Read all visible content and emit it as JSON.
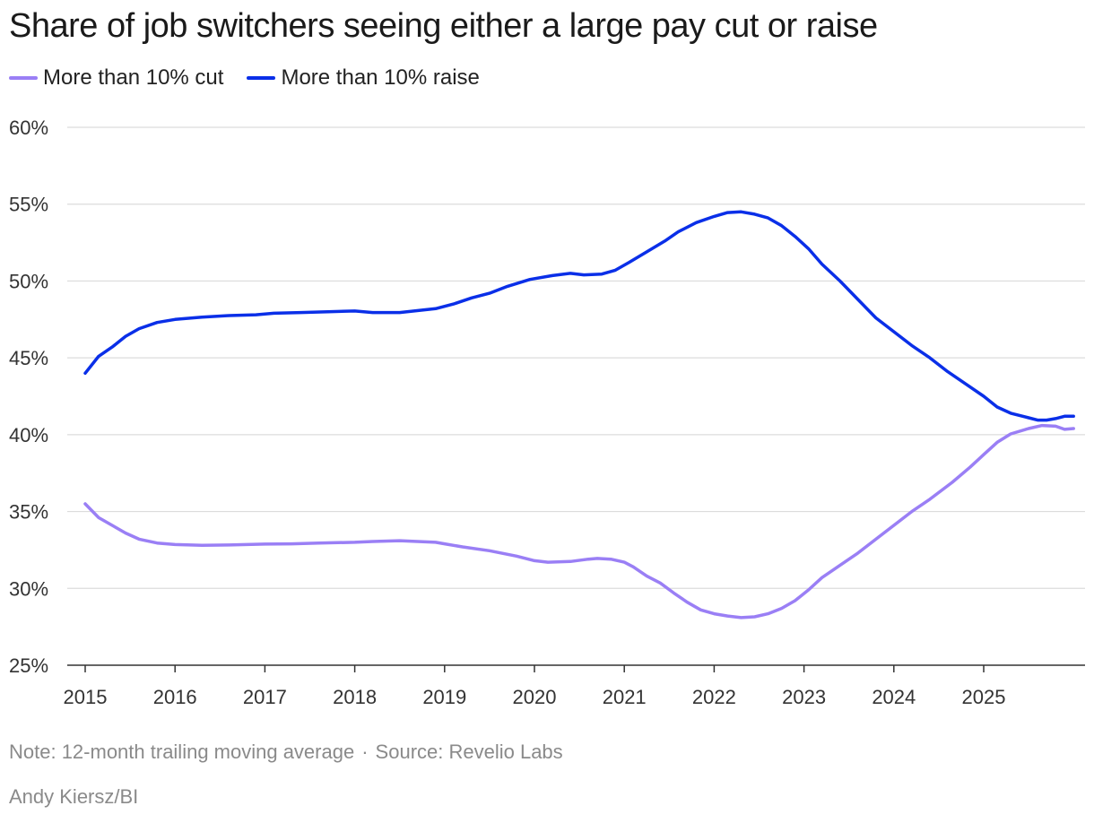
{
  "chart_data": {
    "type": "line",
    "title": "Share of job switchers seeing either a large pay cut or raise",
    "xlabel": "",
    "ylabel": "",
    "ylim": [
      25,
      60
    ],
    "xlim": [
      2015,
      2026.1
    ],
    "yticks": [
      25,
      30,
      35,
      40,
      45,
      50,
      55,
      60
    ],
    "ytick_labels": [
      "25%",
      "30%",
      "35%",
      "40%",
      "45%",
      "50%",
      "55%",
      "60%"
    ],
    "xticks": [
      2015,
      2016,
      2017,
      2018,
      2019,
      2020,
      2021,
      2022,
      2023,
      2024,
      2025
    ],
    "xtick_labels": [
      "2015",
      "2016",
      "2017",
      "2018",
      "2019",
      "2020",
      "2021",
      "2022",
      "2023",
      "2024",
      "2025"
    ],
    "grid": true,
    "legend_position": "top-left",
    "series": [
      {
        "name": "More than 10% cut",
        "color": "#9a7ff5",
        "points": [
          [
            2015.0,
            35.5
          ],
          [
            2015.15,
            34.6
          ],
          [
            2015.3,
            34.1
          ],
          [
            2015.45,
            33.6
          ],
          [
            2015.6,
            33.2
          ],
          [
            2015.8,
            32.95
          ],
          [
            2016.0,
            32.85
          ],
          [
            2016.3,
            32.8
          ],
          [
            2016.6,
            32.82
          ],
          [
            2017.0,
            32.88
          ],
          [
            2017.3,
            32.9
          ],
          [
            2017.6,
            32.95
          ],
          [
            2018.0,
            33.0
          ],
          [
            2018.2,
            33.05
          ],
          [
            2018.5,
            33.1
          ],
          [
            2018.9,
            33.0
          ],
          [
            2019.0,
            32.9
          ],
          [
            2019.2,
            32.7
          ],
          [
            2019.5,
            32.45
          ],
          [
            2019.8,
            32.1
          ],
          [
            2020.0,
            31.8
          ],
          [
            2020.15,
            31.7
          ],
          [
            2020.4,
            31.75
          ],
          [
            2020.6,
            31.9
          ],
          [
            2020.7,
            31.95
          ],
          [
            2020.85,
            31.9
          ],
          [
            2021.0,
            31.7
          ],
          [
            2021.1,
            31.4
          ],
          [
            2021.25,
            30.8
          ],
          [
            2021.4,
            30.35
          ],
          [
            2021.55,
            29.7
          ],
          [
            2021.7,
            29.1
          ],
          [
            2021.85,
            28.6
          ],
          [
            2022.0,
            28.35
          ],
          [
            2022.15,
            28.2
          ],
          [
            2022.3,
            28.1
          ],
          [
            2022.45,
            28.15
          ],
          [
            2022.6,
            28.35
          ],
          [
            2022.75,
            28.7
          ],
          [
            2022.9,
            29.2
          ],
          [
            2023.05,
            29.9
          ],
          [
            2023.2,
            30.7
          ],
          [
            2023.4,
            31.5
          ],
          [
            2023.6,
            32.3
          ],
          [
            2023.8,
            33.2
          ],
          [
            2024.0,
            34.1
          ],
          [
            2024.2,
            35.0
          ],
          [
            2024.4,
            35.8
          ],
          [
            2024.65,
            36.9
          ],
          [
            2024.85,
            37.9
          ],
          [
            2025.0,
            38.7
          ],
          [
            2025.15,
            39.5
          ],
          [
            2025.3,
            40.05
          ],
          [
            2025.5,
            40.4
          ],
          [
            2025.65,
            40.6
          ],
          [
            2025.8,
            40.55
          ],
          [
            2025.9,
            40.35
          ],
          [
            2026.0,
            40.4
          ]
        ]
      },
      {
        "name": "More than 10% raise",
        "color": "#0a2fe8",
        "points": [
          [
            2015.0,
            44.0
          ],
          [
            2015.15,
            45.1
          ],
          [
            2015.3,
            45.7
          ],
          [
            2015.45,
            46.4
          ],
          [
            2015.6,
            46.9
          ],
          [
            2015.8,
            47.3
          ],
          [
            2016.0,
            47.5
          ],
          [
            2016.3,
            47.65
          ],
          [
            2016.6,
            47.75
          ],
          [
            2016.9,
            47.8
          ],
          [
            2017.1,
            47.9
          ],
          [
            2017.4,
            47.95
          ],
          [
            2017.7,
            48.0
          ],
          [
            2018.0,
            48.05
          ],
          [
            2018.2,
            47.95
          ],
          [
            2018.5,
            47.95
          ],
          [
            2018.9,
            48.2
          ],
          [
            2019.1,
            48.5
          ],
          [
            2019.3,
            48.9
          ],
          [
            2019.5,
            49.2
          ],
          [
            2019.7,
            49.65
          ],
          [
            2019.95,
            50.1
          ],
          [
            2020.2,
            50.35
          ],
          [
            2020.4,
            50.5
          ],
          [
            2020.55,
            50.4
          ],
          [
            2020.75,
            50.45
          ],
          [
            2020.9,
            50.7
          ],
          [
            2021.05,
            51.2
          ],
          [
            2021.25,
            51.9
          ],
          [
            2021.45,
            52.6
          ],
          [
            2021.6,
            53.2
          ],
          [
            2021.8,
            53.8
          ],
          [
            2022.0,
            54.2
          ],
          [
            2022.15,
            54.45
          ],
          [
            2022.3,
            54.5
          ],
          [
            2022.45,
            54.35
          ],
          [
            2022.6,
            54.1
          ],
          [
            2022.75,
            53.6
          ],
          [
            2022.9,
            52.9
          ],
          [
            2023.05,
            52.1
          ],
          [
            2023.2,
            51.1
          ],
          [
            2023.4,
            50.0
          ],
          [
            2023.6,
            48.8
          ],
          [
            2023.8,
            47.6
          ],
          [
            2024.0,
            46.7
          ],
          [
            2024.2,
            45.8
          ],
          [
            2024.4,
            45.0
          ],
          [
            2024.6,
            44.1
          ],
          [
            2024.8,
            43.3
          ],
          [
            2025.0,
            42.5
          ],
          [
            2025.15,
            41.8
          ],
          [
            2025.3,
            41.4
          ],
          [
            2025.5,
            41.1
          ],
          [
            2025.6,
            40.95
          ],
          [
            2025.7,
            40.95
          ],
          [
            2025.8,
            41.05
          ],
          [
            2025.9,
            41.2
          ],
          [
            2026.0,
            41.2
          ]
        ]
      }
    ]
  },
  "footer": {
    "note": "Note: 12-month trailing moving average",
    "separator": "·",
    "source": "Source: Revelio Labs",
    "credit": "Andy Kiersz/BI"
  }
}
